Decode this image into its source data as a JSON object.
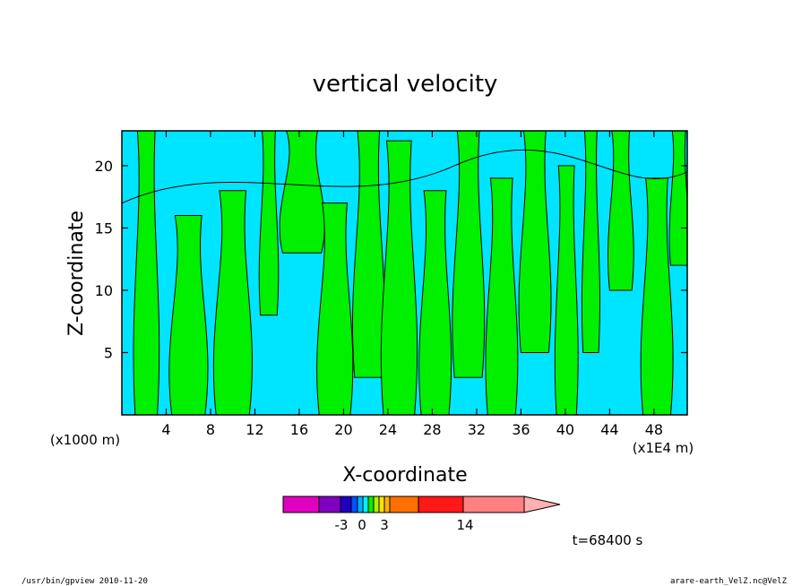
{
  "chart_data": {
    "type": "heatmap",
    "title": "vertical velocity",
    "xlabel": "X-coordinate",
    "ylabel": "Z-coordinate",
    "x_unit_left": "(x1000 m)",
    "x_unit_right": "(x1E4 m)",
    "x_ticks": [
      "4",
      "8",
      "12",
      "16",
      "20",
      "24",
      "28",
      "32",
      "36",
      "40",
      "44",
      "48"
    ],
    "y_ticks": [
      "5",
      "10",
      "15",
      "20"
    ],
    "xlim": [
      0,
      51
    ],
    "ylim": [
      0,
      22.8
    ],
    "colors": {
      "negative": "#00e5ff",
      "positive": "#00f000",
      "contour": "#000000"
    },
    "colorbar": {
      "swatches": [
        "#e000c0",
        "#8000c0",
        "#2000c0",
        "#0050ff",
        "#00b0ff",
        "#00f0ff",
        "#00f000",
        "#b0f000",
        "#ffe000",
        "#ffb000",
        "#ff7000",
        "#ff1818",
        "#ff8080",
        "#ffb0b0"
      ],
      "labels": [
        "-3",
        "0",
        "3",
        "14"
      ]
    },
    "time_label": "t=68400 s"
  },
  "footer": {
    "left": "/usr/bin/gpview   2010-11-20",
    "right": "arare-earth_VelZ.nc@VelZ"
  }
}
